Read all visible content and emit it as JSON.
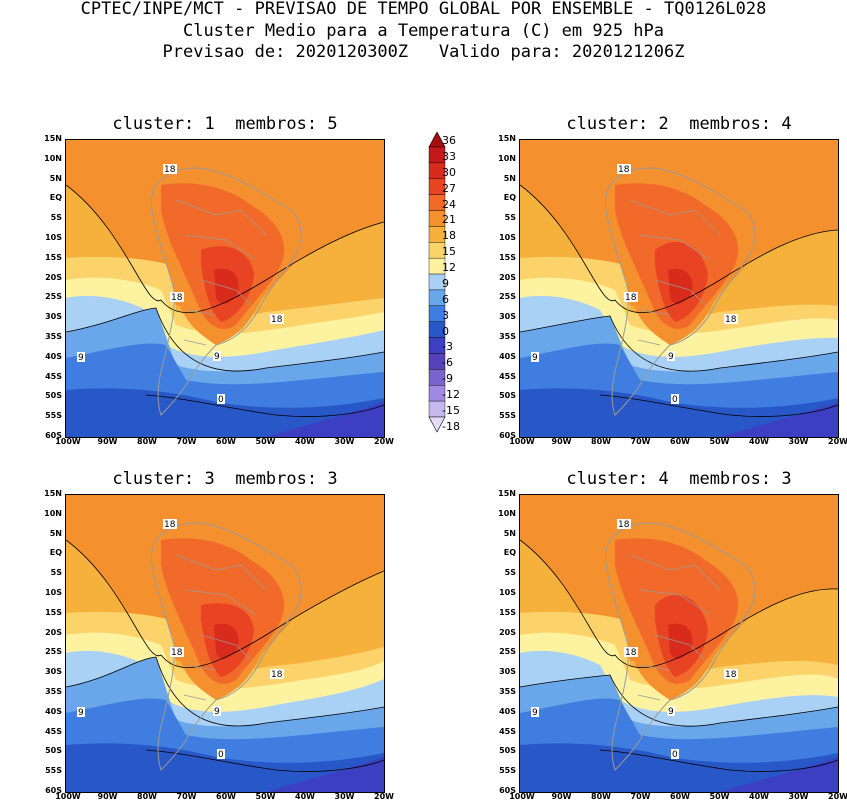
{
  "header": {
    "line1": "CPTEC/INPE/MCT - PREVISAO DE TEMPO GLOBAL POR ENSEMBLE - TQ0126L028",
    "line2": "Cluster Medio para a Temperatura (C) em 925 hPa",
    "line3": "Previsao de: 2020120300Z   Valido para: 2020121206Z"
  },
  "panels": [
    {
      "title": "cluster: 1  membros: 5"
    },
    {
      "title": "cluster: 2  membros: 4"
    },
    {
      "title": "cluster: 3  membros: 3"
    },
    {
      "title": "cluster: 4  membros: 3"
    }
  ],
  "lat_labels": [
    "15N",
    "10N",
    "5N",
    "EQ",
    "5S",
    "10S",
    "15S",
    "20S",
    "25S",
    "30S",
    "35S",
    "40S",
    "45S",
    "50S",
    "55S",
    "60S"
  ],
  "lon_labels": [
    "100W",
    "90W",
    "80W",
    "70W",
    "60W",
    "50W",
    "40W",
    "30W",
    "20W"
  ],
  "contour_labels": [
    "18",
    "9",
    "0"
  ],
  "colorbar": {
    "levels": [
      "36",
      "33",
      "30",
      "27",
      "24",
      "21",
      "18",
      "15",
      "12",
      "9",
      "6",
      "3",
      "0",
      "-3",
      "-6",
      "-9",
      "-12",
      "-15",
      "-18"
    ],
    "colors": [
      "#a50f0f",
      "#c21a1a",
      "#d92b1b",
      "#e84424",
      "#f26a2a",
      "#f5902e",
      "#f6b13c",
      "#fbd36a",
      "#fdf2a0",
      "#a9d0f5",
      "#6aa7ea",
      "#3f7ee0",
      "#2857c8",
      "#3d3fc2",
      "#5541b8",
      "#7a63cf",
      "#9f8ae0",
      "#c4b8ee",
      "#e4dcf8"
    ]
  }
}
